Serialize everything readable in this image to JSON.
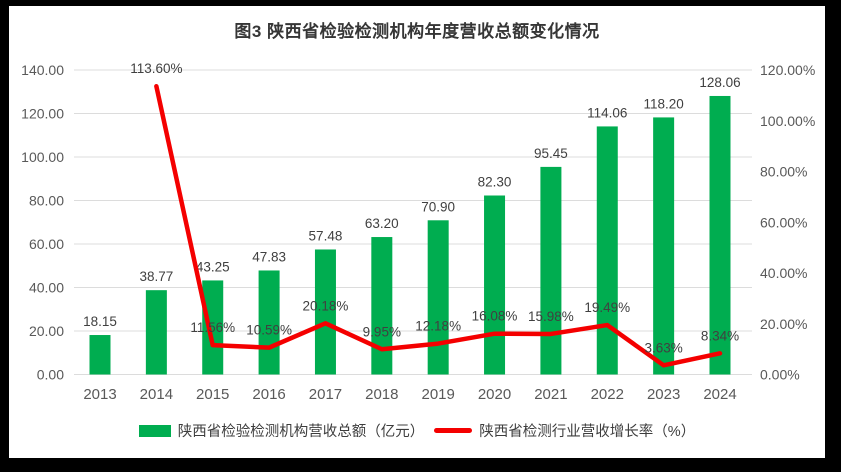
{
  "chart_data": {
    "type": "bar+line",
    "title": "图3  陕西省检验检测机构年度营收总额变化情况",
    "categories": [
      "2013",
      "2014",
      "2015",
      "2016",
      "2017",
      "2018",
      "2019",
      "2020",
      "2021",
      "2022",
      "2023",
      "2024"
    ],
    "series": [
      {
        "name": "陕西省检验检测机构营收总额（亿元）",
        "type": "bar",
        "axis": "left",
        "color": "#00AD50",
        "values": [
          18.15,
          38.77,
          43.25,
          47.83,
          57.48,
          63.2,
          70.9,
          82.3,
          95.45,
          114.06,
          118.2,
          128.06
        ],
        "labels": [
          "18.15",
          "38.77",
          "43.25",
          "47.83",
          "57.48",
          "63.20",
          "70.90",
          "82.30",
          "95.45",
          "114.06",
          "118.20",
          "128.06"
        ]
      },
      {
        "name": "陕西省检测行业营收增长率（%）",
        "type": "line",
        "axis": "right",
        "color": "#F40000",
        "values": [
          null,
          113.6,
          11.56,
          10.59,
          20.18,
          9.95,
          12.18,
          16.08,
          15.98,
          19.49,
          3.63,
          8.34
        ],
        "labels": [
          null,
          "113.60%",
          "11.56%",
          "10.59%",
          "20.18%",
          "9.95%",
          "12.18%",
          "16.08%",
          "15.98%",
          "19.49%",
          "3.63%",
          "8.34%"
        ]
      }
    ],
    "left_axis": {
      "min": 0,
      "max": 140,
      "tick_labels": [
        "0.00",
        "20.00",
        "40.00",
        "60.00",
        "80.00",
        "100.00",
        "120.00",
        "140.00"
      ]
    },
    "right_axis": {
      "min": 0,
      "max": 120,
      "tick_labels": [
        "0.00%",
        "20.00%",
        "40.00%",
        "60.00%",
        "80.00%",
        "100.00%",
        "120.00%"
      ]
    },
    "grid": true,
    "legend_position": "bottom"
  },
  "legend": {
    "items": [
      {
        "label": "陕西省检验检测机构营收总额（亿元）",
        "swatch": "bar",
        "color": "#00AD50"
      },
      {
        "label": "陕西省检测行业营收增长率（%）",
        "swatch": "line",
        "color": "#F40000"
      }
    ]
  },
  "styles": {
    "frame_color": "#000000",
    "card_color": "#FFFFFF",
    "grid_color": "#DCDCDC",
    "axis_label_color": "#595959",
    "data_label_color": "#404040",
    "title_color": "#363636"
  }
}
